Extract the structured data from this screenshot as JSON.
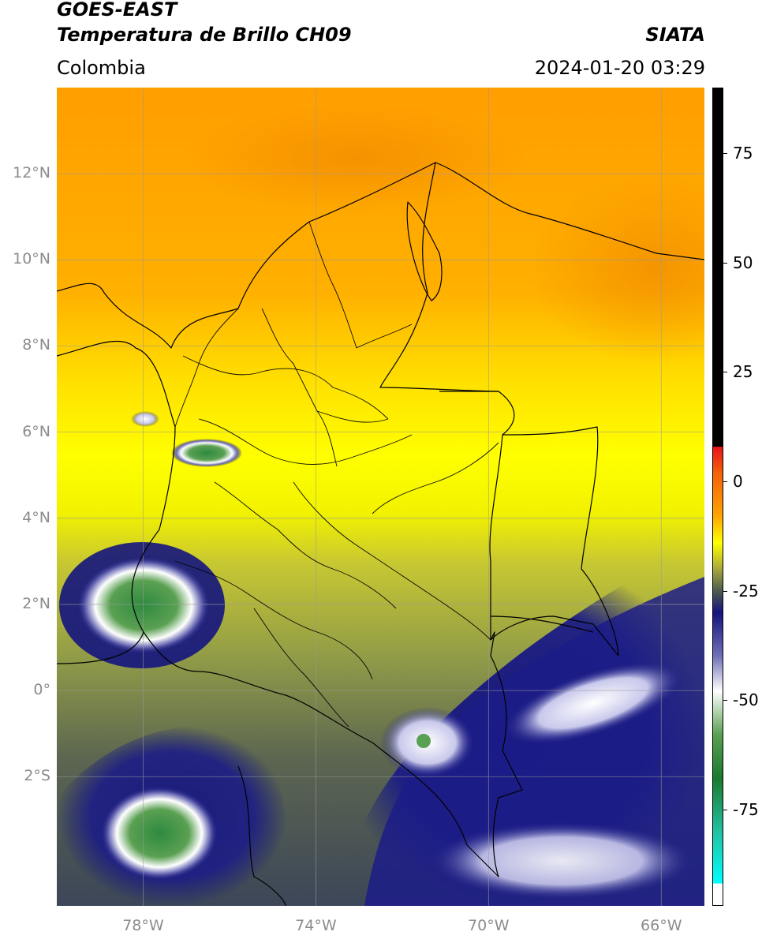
{
  "header": {
    "title_line1": "GOES-EAST",
    "title_line2": "Temperatura de Brillo CH09",
    "brand": "SIATA",
    "region": "Colombia",
    "timestamp": "2024-01-20 03:29"
  },
  "map": {
    "lon_range": [
      -80,
      -65
    ],
    "lat_range": [
      -5,
      14
    ],
    "lat_labels": [
      {
        "lat": 12,
        "label": "12°N"
      },
      {
        "lat": 10,
        "label": "10°N"
      },
      {
        "lat": 8,
        "label": "8°N"
      },
      {
        "lat": 6,
        "label": "6°N"
      },
      {
        "lat": 4,
        "label": "4°N"
      },
      {
        "lat": 2,
        "label": "2°N"
      },
      {
        "lat": 0,
        "label": "0°"
      },
      {
        "lat": -2,
        "label": "2°S"
      }
    ],
    "lon_labels": [
      {
        "lon": -78,
        "label": "78°W"
      },
      {
        "lon": -74,
        "label": "74°W"
      },
      {
        "lon": -70,
        "label": "70°W"
      },
      {
        "lon": -66,
        "label": "66°W"
      }
    ]
  },
  "colorbar": {
    "range": [
      -97,
      90
    ],
    "ticks": [
      {
        "value": 75,
        "label": "75"
      },
      {
        "value": 50,
        "label": "50"
      },
      {
        "value": 25,
        "label": "25"
      },
      {
        "value": 0,
        "label": "0"
      },
      {
        "value": -25,
        "label": "-25"
      },
      {
        "value": -50,
        "label": "-50"
      },
      {
        "value": -75,
        "label": "-75"
      }
    ],
    "stops": [
      {
        "value": 90,
        "color": "#000000"
      },
      {
        "value": 8,
        "color": "#000000"
      },
      {
        "value": 7.9,
        "color": "#e8141c"
      },
      {
        "value": 2,
        "color": "#f5600a"
      },
      {
        "value": -8,
        "color": "#ffa500"
      },
      {
        "value": -14,
        "color": "#ffff00"
      },
      {
        "value": -20,
        "color": "#a8a83c"
      },
      {
        "value": -25,
        "color": "#4e5c4e"
      },
      {
        "value": -30,
        "color": "#14147e"
      },
      {
        "value": -40,
        "color": "#7070b8"
      },
      {
        "value": -48,
        "color": "#ffffff"
      },
      {
        "value": -58,
        "color": "#5aa052"
      },
      {
        "value": -68,
        "color": "#1a7a2e"
      },
      {
        "value": -80,
        "color": "#22c0a0"
      },
      {
        "value": -92,
        "color": "#00ffff"
      },
      {
        "value": -92.1,
        "color": "#ffffff"
      },
      {
        "value": -97,
        "color": "#ffffff"
      }
    ]
  }
}
